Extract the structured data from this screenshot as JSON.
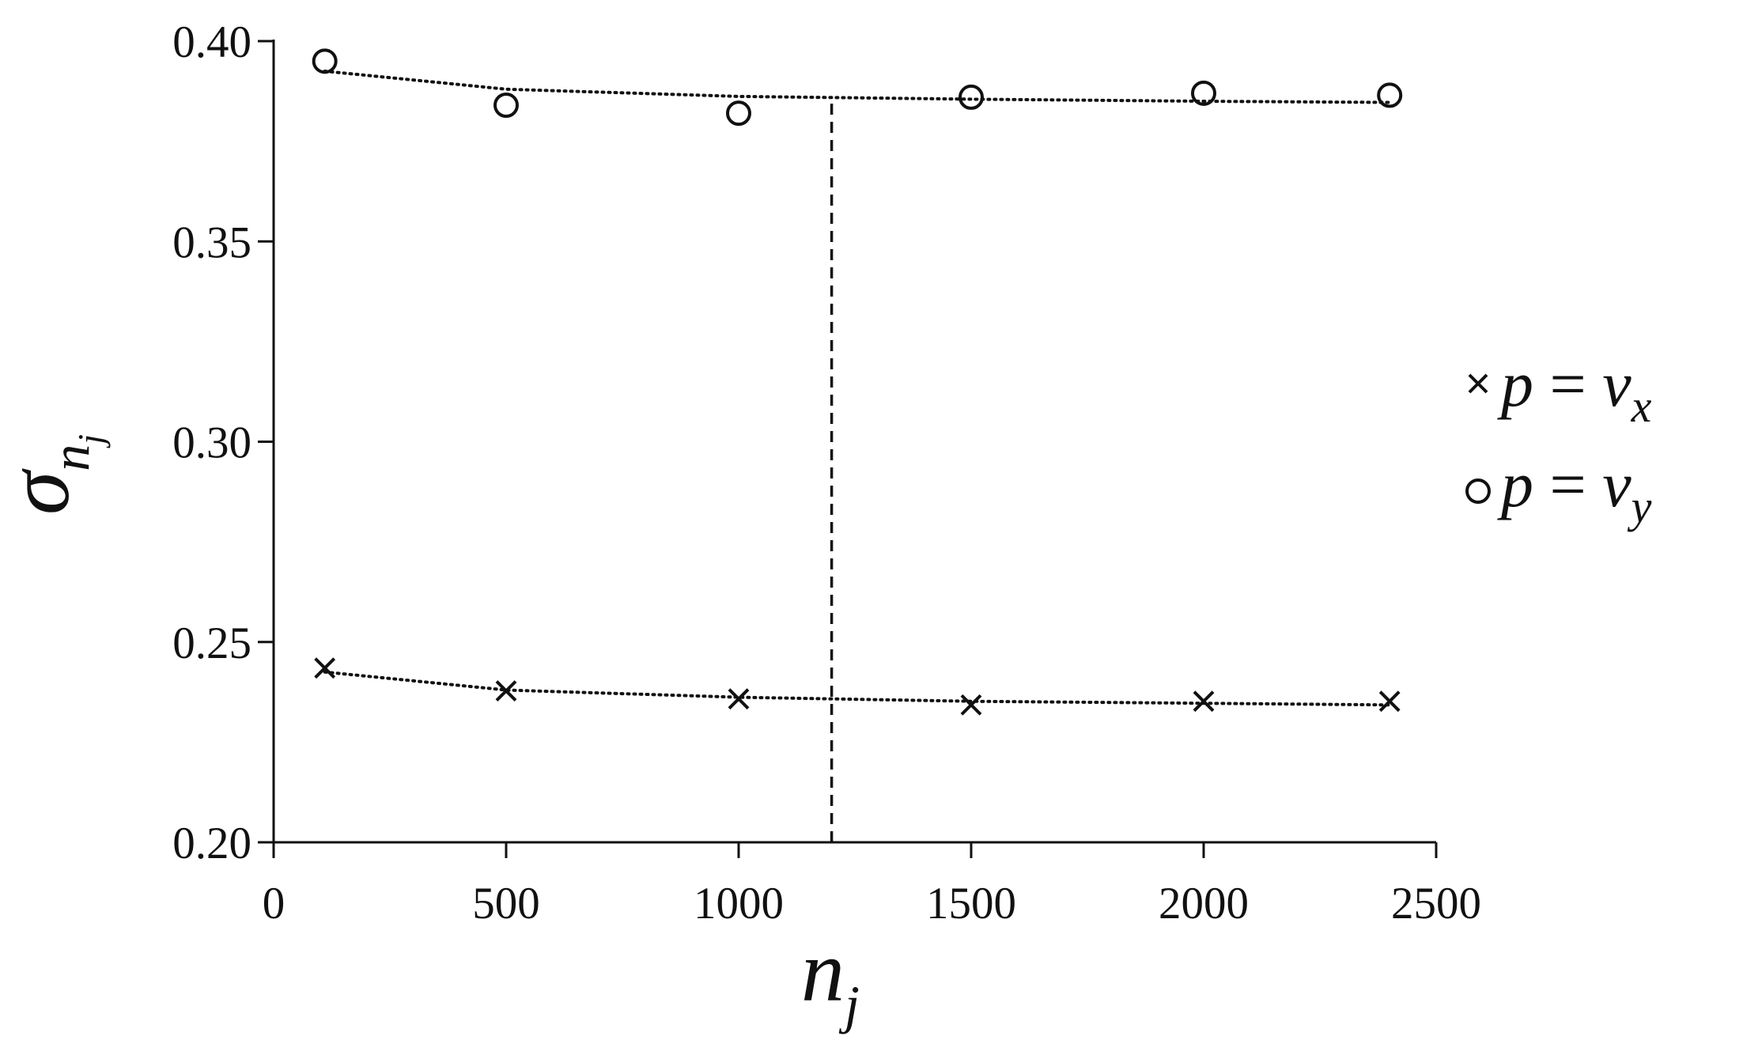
{
  "chart_data": {
    "type": "scatter",
    "xlim": [
      0,
      2500
    ],
    "ylim": [
      0.2,
      0.4
    ],
    "x_ticks": [
      "0",
      "500",
      "1000",
      "1500",
      "2000",
      "2500"
    ],
    "y_ticks": [
      "0.20",
      "0.25",
      "0.30",
      "0.35",
      "0.40"
    ],
    "xlabel": {
      "base": "n",
      "sub": "j"
    },
    "ylabel": {
      "base": "σ",
      "sub": "n",
      "subsub": "j"
    },
    "grid": false,
    "legend_position": "right",
    "reference_line": {
      "x": 1200,
      "style": "dashed"
    },
    "series": [
      {
        "name": {
          "lhs": "p",
          "op": " = ",
          "v": "v",
          "sub": "x"
        },
        "marker": "x",
        "x": [
          110,
          500,
          1000,
          1500,
          2000,
          2400
        ],
        "y": [
          0.2435,
          0.2378,
          0.2358,
          0.2343,
          0.2352,
          0.2352
        ],
        "trend": [
          0.2425,
          0.238,
          0.2362,
          0.2352,
          0.2347,
          0.2343
        ]
      },
      {
        "name": {
          "lhs": "p",
          "op": " = ",
          "v": "v",
          "sub": "y"
        },
        "marker": "circle",
        "x": [
          110,
          500,
          1000,
          1500,
          2000,
          2400
        ],
        "y": [
          0.395,
          0.384,
          0.382,
          0.386,
          0.387,
          0.3865
        ],
        "trend": [
          0.3925,
          0.388,
          0.3862,
          0.3855,
          0.385,
          0.3847
        ]
      }
    ]
  }
}
